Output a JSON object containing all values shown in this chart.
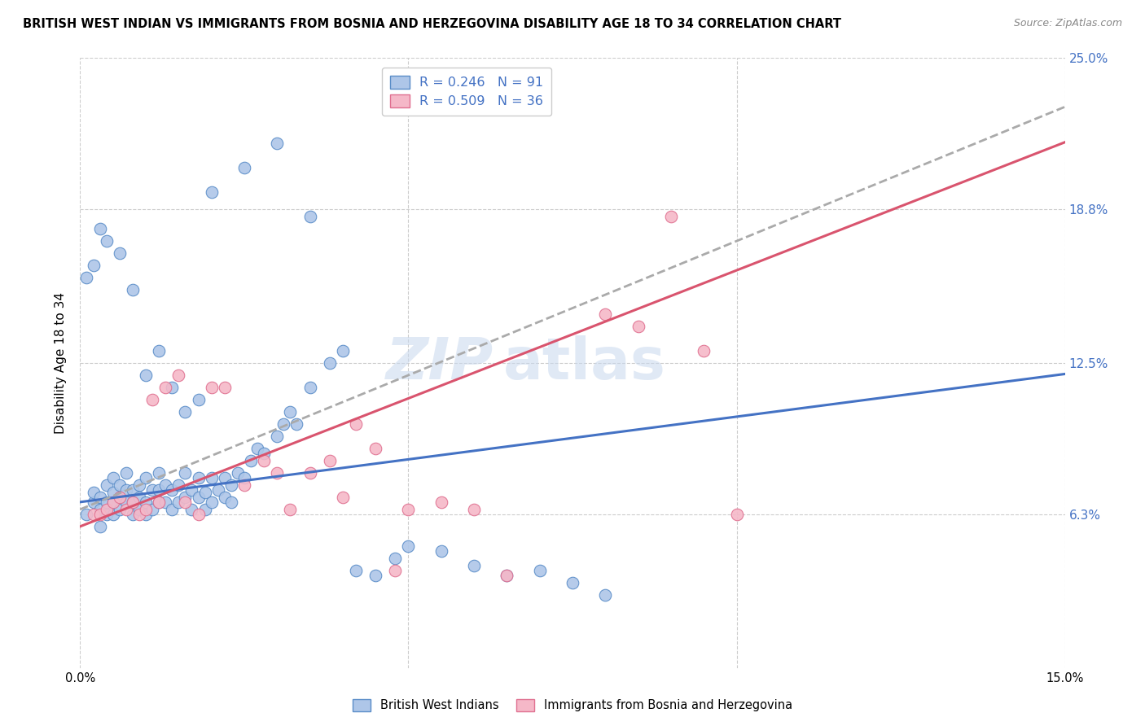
{
  "title": "BRITISH WEST INDIAN VS IMMIGRANTS FROM BOSNIA AND HERZEGOVINA DISABILITY AGE 18 TO 34 CORRELATION CHART",
  "source": "Source: ZipAtlas.com",
  "ylabel": "Disability Age 18 to 34",
  "xlim": [
    0.0,
    0.15
  ],
  "ylim": [
    0.0,
    0.25
  ],
  "ytick_values": [
    0.063,
    0.125,
    0.188,
    0.25
  ],
  "ytick_labels": [
    "6.3%",
    "12.5%",
    "18.8%",
    "25.0%"
  ],
  "xtick_values": [
    0.0,
    0.05,
    0.1,
    0.15
  ],
  "xtick_labels": [
    "0.0%",
    "",
    "",
    "15.0%"
  ],
  "blue_R": 0.246,
  "blue_N": 91,
  "pink_R": 0.509,
  "pink_N": 36,
  "blue_color": "#aec6e8",
  "pink_color": "#f5b8c8",
  "blue_edge_color": "#5a8dc8",
  "pink_edge_color": "#e07090",
  "blue_line_color": "#4472c4",
  "pink_line_color": "#d9546e",
  "dashed_line_color": "#aaaaaa",
  "legend_label_blue": "British West Indians",
  "legend_label_pink": "Immigrants from Bosnia and Herzegovina",
  "blue_scatter_x": [
    0.001,
    0.002,
    0.002,
    0.003,
    0.003,
    0.003,
    0.004,
    0.004,
    0.004,
    0.005,
    0.005,
    0.005,
    0.005,
    0.006,
    0.006,
    0.006,
    0.007,
    0.007,
    0.007,
    0.008,
    0.008,
    0.008,
    0.009,
    0.009,
    0.009,
    0.01,
    0.01,
    0.01,
    0.011,
    0.011,
    0.012,
    0.012,
    0.012,
    0.013,
    0.013,
    0.014,
    0.014,
    0.015,
    0.015,
    0.016,
    0.016,
    0.017,
    0.017,
    0.018,
    0.018,
    0.019,
    0.019,
    0.02,
    0.02,
    0.021,
    0.022,
    0.022,
    0.023,
    0.023,
    0.024,
    0.025,
    0.026,
    0.027,
    0.028,
    0.03,
    0.031,
    0.032,
    0.033,
    0.035,
    0.038,
    0.04,
    0.042,
    0.045,
    0.048,
    0.05,
    0.055,
    0.06,
    0.065,
    0.07,
    0.075,
    0.08,
    0.01,
    0.012,
    0.014,
    0.016,
    0.018,
    0.02,
    0.025,
    0.03,
    0.035,
    0.008,
    0.006,
    0.004,
    0.003,
    0.002,
    0.001
  ],
  "blue_scatter_y": [
    0.063,
    0.068,
    0.072,
    0.058,
    0.065,
    0.07,
    0.063,
    0.068,
    0.075,
    0.063,
    0.068,
    0.072,
    0.078,
    0.065,
    0.07,
    0.075,
    0.068,
    0.073,
    0.08,
    0.063,
    0.068,
    0.073,
    0.065,
    0.07,
    0.075,
    0.063,
    0.068,
    0.078,
    0.065,
    0.073,
    0.068,
    0.073,
    0.08,
    0.068,
    0.075,
    0.065,
    0.073,
    0.068,
    0.075,
    0.07,
    0.08,
    0.065,
    0.073,
    0.07,
    0.078,
    0.065,
    0.072,
    0.068,
    0.078,
    0.073,
    0.07,
    0.078,
    0.068,
    0.075,
    0.08,
    0.078,
    0.085,
    0.09,
    0.088,
    0.095,
    0.1,
    0.105,
    0.1,
    0.115,
    0.125,
    0.13,
    0.04,
    0.038,
    0.045,
    0.05,
    0.048,
    0.042,
    0.038,
    0.04,
    0.035,
    0.03,
    0.12,
    0.13,
    0.115,
    0.105,
    0.11,
    0.195,
    0.205,
    0.215,
    0.185,
    0.155,
    0.17,
    0.175,
    0.18,
    0.165,
    0.16
  ],
  "pink_scatter_x": [
    0.002,
    0.003,
    0.004,
    0.005,
    0.006,
    0.007,
    0.008,
    0.009,
    0.01,
    0.011,
    0.012,
    0.013,
    0.015,
    0.016,
    0.018,
    0.02,
    0.022,
    0.025,
    0.028,
    0.03,
    0.032,
    0.035,
    0.038,
    0.04,
    0.042,
    0.045,
    0.048,
    0.05,
    0.055,
    0.06,
    0.065,
    0.08,
    0.085,
    0.09,
    0.095,
    0.1
  ],
  "pink_scatter_y": [
    0.063,
    0.063,
    0.065,
    0.068,
    0.07,
    0.065,
    0.068,
    0.063,
    0.065,
    0.11,
    0.068,
    0.115,
    0.12,
    0.068,
    0.063,
    0.115,
    0.115,
    0.075,
    0.085,
    0.08,
    0.065,
    0.08,
    0.085,
    0.07,
    0.1,
    0.09,
    0.04,
    0.065,
    0.068,
    0.065,
    0.038,
    0.145,
    0.14,
    0.185,
    0.13,
    0.063
  ],
  "blue_trend_slope": 0.35,
  "blue_trend_intercept": 0.068,
  "pink_trend_slope": 1.05,
  "pink_trend_intercept": 0.058,
  "dashed_trend_slope": 1.1,
  "dashed_trend_intercept": 0.065
}
